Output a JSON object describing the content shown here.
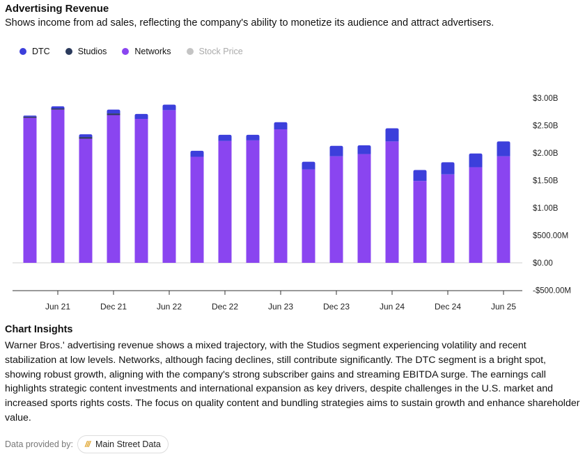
{
  "header": {
    "title": "Advertising Revenue",
    "subtitle": "Shows income from ad sales, reflecting the company's ability to monetize its audience and attract advertisers."
  },
  "legend": [
    {
      "label": "DTC",
      "color": "#3c3fdb",
      "icon": "dtc-dot-icon",
      "muted": false
    },
    {
      "label": "Studios",
      "color": "#2b3a5c",
      "icon": "studios-dot-icon",
      "muted": false
    },
    {
      "label": "Networks",
      "color": "#8a45f0",
      "icon": "networks-dot-icon",
      "muted": false
    },
    {
      "label": "Stock Price",
      "color": "#c4c4c4",
      "icon": "stock-price-dot-icon",
      "muted": true
    }
  ],
  "chart_data": {
    "type": "bar",
    "stacked": true,
    "categories": [
      "Q1 21",
      "Q2 21",
      "Q3 21",
      "Q4 21",
      "Q1 22",
      "Q2 22",
      "Q3 22",
      "Q4 22",
      "Q1 23",
      "Q2 23",
      "Q3 23",
      "Q4 23",
      "Q1 24",
      "Q2 24",
      "Q3 24",
      "Q4 24",
      "Q1 25",
      "Q2 25"
    ],
    "x_tick_labels": [
      "Jun 21",
      "Dec 21",
      "Jun 22",
      "Dec 22",
      "Jun 23",
      "Dec 23",
      "Jun 24",
      "Dec 24",
      "Jun 25"
    ],
    "x_tick_category_index": [
      1,
      3,
      5,
      7,
      9,
      11,
      13,
      15,
      17
    ],
    "series": [
      {
        "name": "Networks",
        "color": "#8a45f0",
        "values": [
          2.64,
          2.79,
          2.26,
          2.69,
          2.62,
          2.78,
          1.93,
          2.22,
          2.23,
          2.43,
          1.7,
          1.94,
          1.98,
          2.21,
          1.49,
          1.61,
          1.74,
          1.94
        ]
      },
      {
        "name": "Studios",
        "color": "#2b3a5c",
        "values": [
          0.02,
          0.02,
          0.03,
          0.03,
          0.0,
          0.0,
          0.0,
          0.0,
          0.0,
          0.0,
          0.0,
          0.0,
          0.0,
          0.0,
          0.0,
          0.0,
          0.0,
          0.0
        ]
      },
      {
        "name": "DTC",
        "color": "#3c3fdb",
        "values": [
          0.02,
          0.04,
          0.05,
          0.07,
          0.09,
          0.1,
          0.11,
          0.11,
          0.1,
          0.13,
          0.14,
          0.19,
          0.16,
          0.24,
          0.2,
          0.22,
          0.25,
          0.27
        ]
      }
    ],
    "y_ticks": [
      {
        "value": 3.0,
        "label": "$3.00B"
      },
      {
        "value": 2.5,
        "label": "$2.50B"
      },
      {
        "value": 2.0,
        "label": "$2.00B"
      },
      {
        "value": 1.5,
        "label": "$1.50B"
      },
      {
        "value": 1.0,
        "label": "$1.00B"
      },
      {
        "value": 0.5,
        "label": "$500.00M"
      },
      {
        "value": 0.0,
        "label": "$0.00"
      },
      {
        "value": -0.5,
        "label": "-$500.00M"
      }
    ],
    "ylim": [
      -0.5,
      3.0
    ],
    "unit": "billions USD"
  },
  "insights": {
    "title": "Chart Insights",
    "text": "Warner Bros.' advertising revenue shows a mixed trajectory, with the Studios segment experiencing volatility and recent stabilization at low levels. Networks, although facing declines, still contribute significantly. The DTC segment is a bright spot, showing robust growth, aligning with the company's strong subscriber gains and streaming EBITDA surge. The earnings call highlights strategic content investments and international expansion as key drivers, despite challenges in the U.S. market and increased sports rights costs. The focus on quality content and bundling strategies aims to sustain growth and enhance shareholder value."
  },
  "footer": {
    "label": "Data provided by:",
    "provider": "Main Street Data",
    "provider_icon": "main-street-data-logo-icon",
    "accent": "#e0a52d"
  }
}
